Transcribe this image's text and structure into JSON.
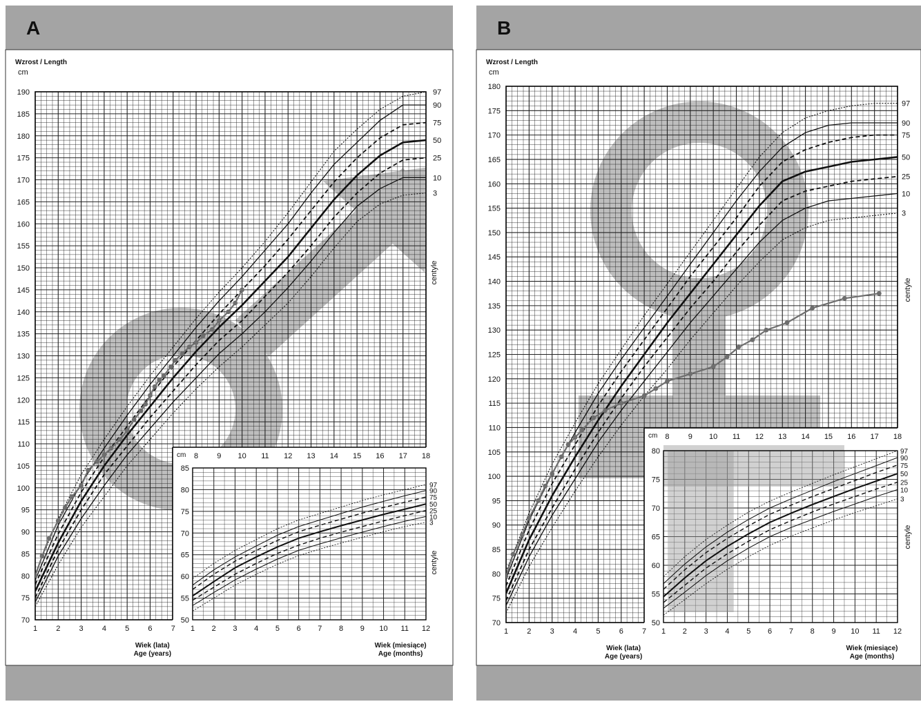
{
  "panels": [
    {
      "letter": "A",
      "title": "Wzrost / Length",
      "unit": "cm",
      "centile_label": "centyle",
      "main_xlabel_pl": "Wiek (lata)",
      "main_xlabel_en": "Age (years)",
      "inset_xlabel_pl": "Wiek (miesiące)",
      "inset_xlabel_en": "Age (months)",
      "percentile_labels": [
        "97",
        "90",
        "75",
        "50",
        "25",
        "10",
        "3"
      ],
      "inset_percentile_labels": [
        "97",
        "90",
        "75",
        "50",
        "25",
        "10",
        "3"
      ]
    },
    {
      "letter": "B",
      "title": "Wzrost / Length",
      "unit": "cm",
      "centile_label": "centyle",
      "main_xlabel_pl": "Wiek (lata)",
      "main_xlabel_en": "Age (years)",
      "inset_xlabel_pl": "Wiek (miesiące)",
      "inset_xlabel_en": "Age (months)",
      "percentile_labels": [
        "97",
        "90",
        "75",
        "50",
        "25",
        "10",
        "3"
      ],
      "inset_percentile_labels": [
        "97",
        "90",
        "75",
        "50",
        "25",
        "10",
        "3"
      ]
    }
  ],
  "chart_data": [
    {
      "type": "line",
      "panel": "A",
      "sex_symbol": "male",
      "xlim": [
        1,
        18
      ],
      "ylim": [
        70,
        190
      ],
      "xticks": [
        1,
        2,
        3,
        4,
        5,
        6,
        7,
        8,
        9,
        10,
        11,
        12,
        13,
        14,
        15,
        16,
        17,
        18
      ],
      "yticks": [
        70,
        75,
        80,
        85,
        90,
        95,
        100,
        105,
        110,
        115,
        120,
        125,
        130,
        135,
        140,
        145,
        150,
        155,
        160,
        165,
        170,
        175,
        180,
        185,
        190
      ],
      "x": [
        1,
        2,
        3,
        4,
        5,
        6,
        7,
        8,
        9,
        10,
        11,
        12,
        13,
        14,
        15,
        16,
        17,
        18
      ],
      "series": [
        {
          "name": "97",
          "style": "dotted",
          "values": [
            80.5,
            93,
            103,
            111,
            118.5,
            125.5,
            132,
            138.5,
            144.5,
            150,
            156,
            162.5,
            169.5,
            176.5,
            181.5,
            186,
            189,
            190
          ]
        },
        {
          "name": "90",
          "style": "solid",
          "values": [
            79,
            91.5,
            101,
            109,
            116.5,
            123.5,
            130,
            136.5,
            142.5,
            148,
            154,
            160,
            167,
            173.5,
            178.5,
            183.5,
            187,
            187
          ]
        },
        {
          "name": "75",
          "style": "dashed",
          "values": [
            78,
            89.5,
            99,
            107,
            114,
            121,
            127.5,
            133.5,
            139.5,
            145,
            150.5,
            156.5,
            163,
            169.5,
            175,
            179.5,
            182.5,
            183
          ]
        },
        {
          "name": "50",
          "style": "bold",
          "values": [
            76.5,
            87.5,
            97,
            105,
            112,
            118.5,
            125,
            131,
            136.5,
            141.5,
            147,
            152.5,
            159,
            165.5,
            171,
            175.5,
            178.5,
            179
          ]
        },
        {
          "name": "25",
          "style": "dashed",
          "values": [
            75,
            86,
            95,
            103,
            109.5,
            116,
            122,
            128,
            133.5,
            138,
            143.5,
            149,
            155,
            161.5,
            167,
            171.5,
            174.5,
            175
          ]
        },
        {
          "name": "10",
          "style": "solid",
          "values": [
            74,
            84.5,
            93,
            100.5,
            107.5,
            113.5,
            119.5,
            125,
            130.5,
            135,
            140,
            145.5,
            151.5,
            158,
            164,
            168,
            170.5,
            170.5
          ]
        },
        {
          "name": "3",
          "style": "dotted",
          "values": [
            73,
            82.5,
            91,
            98,
            105,
            111,
            117,
            122.5,
            127.5,
            132,
            137,
            142,
            148,
            154.5,
            160.5,
            164.5,
            166.5,
            167
          ]
        }
      ],
      "patient": {
        "x": [
          1.0,
          1.3,
          1.6,
          2.0,
          2.3,
          2.6,
          3.0,
          3.3,
          3.7,
          4.0,
          4.3,
          4.7,
          5.0,
          5.3,
          5.6,
          5.8,
          6.0,
          6.2,
          6.4,
          6.6,
          6.9,
          7.1,
          7.4,
          7.7,
          8.0,
          8.3,
          8.7,
          9.0,
          9.4,
          9.7,
          10.0
        ],
        "y": [
          80.0,
          84.5,
          88.5,
          92.5,
          95.5,
          98.0,
          100.5,
          104.0,
          106.0,
          107.5,
          109.0,
          111.0,
          113.0,
          115.5,
          117.5,
          119.0,
          121.0,
          123.0,
          124.5,
          125.5,
          127.5,
          129.0,
          130.5,
          132.0,
          133.0,
          134.5,
          136.0,
          138.0,
          140.0,
          142.0,
          145.0
        ]
      },
      "inset": {
        "xlim": [
          1,
          12
        ],
        "ylim": [
          50,
          85
        ],
        "xticks": [
          1,
          2,
          3,
          4,
          5,
          6,
          7,
          8,
          9,
          10,
          11,
          12
        ],
        "yticks": [
          50,
          55,
          60,
          65,
          70,
          75,
          80,
          85
        ],
        "x": [
          1,
          2,
          3,
          4,
          5,
          6,
          7,
          8,
          9,
          10,
          11,
          12
        ],
        "series": [
          {
            "name": "97",
            "style": "dotted",
            "values": [
              59.5,
              63,
              66,
              68.5,
              71,
              73,
              74.5,
              76,
              77.5,
              78.8,
              80,
              81.2
            ]
          },
          {
            "name": "90",
            "style": "solid",
            "values": [
              58,
              61.5,
              64.5,
              67,
              69.5,
              71.5,
              73,
              74.5,
              76,
              77.3,
              78.6,
              79.8
            ]
          },
          {
            "name": "75",
            "style": "dashed",
            "values": [
              57,
              60.5,
              63.5,
              66,
              68.3,
              70.3,
              71.8,
              73.2,
              74.6,
              75.9,
              77.1,
              78.3
            ]
          },
          {
            "name": "50",
            "style": "bold",
            "values": [
              55.5,
              58.8,
              62,
              64.5,
              66.8,
              68.8,
              70.3,
              71.7,
              73,
              74.3,
              75.5,
              76.7
            ]
          },
          {
            "name": "25",
            "style": "dashed",
            "values": [
              54.5,
              57.5,
              60.5,
              63,
              65.3,
              67.2,
              68.8,
              70.2,
              71.5,
              72.8,
              74,
              75.2
            ]
          },
          {
            "name": "10",
            "style": "solid",
            "values": [
              53.3,
              56.3,
              59.2,
              61.7,
              64,
              66,
              67.5,
              68.9,
              70.2,
              71.5,
              72.7,
              73.8
            ]
          },
          {
            "name": "3",
            "style": "dotted",
            "values": [
              52,
              55,
              58,
              60.5,
              62.8,
              64.8,
              66.3,
              67.7,
              69,
              70.3,
              71.5,
              72.5
            ]
          }
        ]
      }
    },
    {
      "type": "line",
      "panel": "B",
      "sex_symbol": "female",
      "xlim": [
        1,
        18
      ],
      "ylim": [
        70,
        180
      ],
      "xticks": [
        1,
        2,
        3,
        4,
        5,
        6,
        7,
        8,
        9,
        10,
        11,
        12,
        13,
        14,
        15,
        16,
        17,
        18
      ],
      "yticks": [
        70,
        75,
        80,
        85,
        90,
        95,
        100,
        105,
        110,
        115,
        120,
        125,
        130,
        135,
        140,
        145,
        150,
        155,
        160,
        165,
        170,
        175,
        180
      ],
      "x": [
        1,
        2,
        3,
        4,
        5,
        6,
        7,
        8,
        9,
        10,
        11,
        12,
        13,
        14,
        15,
        16,
        17,
        18
      ],
      "series": [
        {
          "name": "97",
          "style": "dotted",
          "values": [
            80.5,
            92.5,
            102.5,
            111,
            119,
            126,
            133,
            139.5,
            146,
            152.5,
            159,
            165.5,
            170.5,
            173.5,
            175,
            176,
            176.5,
            176.5
          ]
        },
        {
          "name": "90",
          "style": "solid",
          "values": [
            79,
            91,
            100.5,
            109,
            117,
            124,
            130.5,
            137,
            143.5,
            150,
            156.5,
            162.5,
            167.5,
            170.5,
            172,
            172.5,
            172.5,
            172.5
          ]
        },
        {
          "name": "75",
          "style": "dashed",
          "values": [
            77.5,
            89,
            98.5,
            106.5,
            114.5,
            121.5,
            128,
            134.5,
            141,
            147,
            153,
            159.5,
            164.5,
            167,
            168.5,
            169.5,
            170,
            170
          ]
        },
        {
          "name": "50",
          "style": "bold",
          "values": [
            76,
            87,
            96,
            104,
            111.5,
            118.5,
            125,
            131.5,
            137.5,
            143.5,
            149.5,
            155.5,
            160.5,
            162.5,
            163.5,
            164.5,
            165,
            165.5
          ]
        },
        {
          "name": "25",
          "style": "dashed",
          "values": [
            74.5,
            85,
            93.5,
            101.5,
            109,
            116,
            122.5,
            128.5,
            134.5,
            140,
            146,
            151.5,
            156.5,
            158.5,
            159.5,
            160.5,
            161,
            161.5
          ]
        },
        {
          "name": "10",
          "style": "solid",
          "values": [
            73.5,
            83.5,
            92,
            99.5,
            107,
            113.5,
            119.5,
            125.5,
            131.5,
            137,
            142.5,
            148,
            152.5,
            155,
            156.5,
            157,
            157.5,
            158
          ]
        },
        {
          "name": "3",
          "style": "dotted",
          "values": [
            72,
            81.5,
            89.5,
            97,
            104,
            110.5,
            116.5,
            122,
            128,
            133.5,
            139,
            144,
            148.5,
            151,
            152.5,
            153,
            153.5,
            154
          ]
        }
      ],
      "patient": {
        "x": [
          1.0,
          1.3,
          1.7,
          2.0,
          2.4,
          2.7,
          3.0,
          3.4,
          3.7,
          4.0,
          4.3,
          4.8,
          5.3,
          6.0,
          7.0,
          7.5,
          8.0,
          9.0,
          10.0,
          10.6,
          11.1,
          11.7,
          12.3,
          13.2,
          14.3,
          15.7,
          17.2
        ],
        "y": [
          79.5,
          84.0,
          88.0,
          91.5,
          95.0,
          98.0,
          100.5,
          104.0,
          106.5,
          108.0,
          109.5,
          112.0,
          113.5,
          115.0,
          116.5,
          118.0,
          119.5,
          121.0,
          122.5,
          124.5,
          126.5,
          128.0,
          130.0,
          131.5,
          134.5,
          136.5,
          137.5
        ]
      },
      "inset": {
        "xlim": [
          1,
          12
        ],
        "ylim": [
          50,
          80
        ],
        "xticks": [
          1,
          2,
          3,
          4,
          5,
          6,
          7,
          8,
          9,
          10,
          11,
          12
        ],
        "yticks": [
          50,
          55,
          60,
          65,
          70,
          75,
          80
        ],
        "x": [
          1,
          2,
          3,
          4,
          5,
          6,
          7,
          8,
          9,
          10,
          11,
          12
        ],
        "series": [
          {
            "name": "97",
            "style": "dotted",
            "values": [
              58,
              61.5,
              64.5,
              67,
              69.3,
              71.2,
              72.8,
              74.3,
              75.8,
              77.2,
              78.6,
              80
            ]
          },
          {
            "name": "90",
            "style": "solid",
            "values": [
              56.8,
              60.2,
              63.2,
              65.8,
              68,
              70,
              71.6,
              73.1,
              74.6,
              76,
              77.4,
              78.8
            ]
          },
          {
            "name": "75",
            "style": "dashed",
            "values": [
              55.8,
              59.2,
              62.2,
              64.7,
              66.9,
              68.9,
              70.5,
              72,
              73.4,
              74.8,
              76.2,
              77.5
            ]
          },
          {
            "name": "50",
            "style": "bold",
            "values": [
              54.5,
              57.8,
              60.8,
              63.3,
              65.5,
              67.5,
              69.1,
              70.6,
              72,
              73.4,
              74.7,
              76
            ]
          },
          {
            "name": "25",
            "style": "dashed",
            "values": [
              53.5,
              56.5,
              59.5,
              62,
              64.2,
              66.2,
              67.8,
              69.3,
              70.7,
              72,
              73.3,
              74.5
            ]
          },
          {
            "name": "10",
            "style": "solid",
            "values": [
              52.5,
              55.3,
              58.2,
              60.8,
              63,
              65,
              66.6,
              68,
              69.4,
              70.7,
              72,
              73.2
            ]
          },
          {
            "name": "3",
            "style": "dotted",
            "values": [
              51.3,
              54,
              56.8,
              59.3,
              61.5,
              63.5,
              65.1,
              66.5,
              67.9,
              69.2,
              70.4,
              71.6
            ]
          }
        ]
      }
    }
  ]
}
